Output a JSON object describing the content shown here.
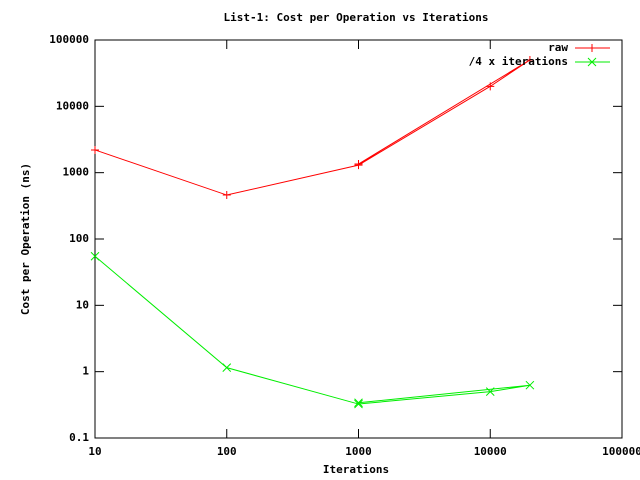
{
  "chart_data": {
    "type": "line",
    "title": "List-1: Cost per Operation vs Iterations",
    "x_label": "Iterations",
    "y_label": "Cost per Operation (ns)",
    "x": [
      10,
      100,
      1000,
      10000,
      20000,
      1000
    ],
    "series": [
      {
        "name": "raw",
        "color": "#ff0000",
        "marker": "+",
        "values": [
          2200,
          460,
          1300,
          20000,
          50000,
          1350
        ]
      },
      {
        "name": "/4 x iterations",
        "color": "#00ee00",
        "marker": "x",
        "values": [
          55,
          1.15,
          0.325,
          0.5,
          0.625,
          0.34
        ]
      }
    ],
    "xlim": [
      10,
      100000
    ],
    "ylim": [
      0.1,
      100000
    ],
    "xlog": true,
    "ylog": true,
    "xticks": [
      10,
      100,
      1000,
      10000,
      100000
    ],
    "yticks": [
      0.1,
      1,
      10,
      100,
      1000,
      10000,
      100000
    ],
    "grid": false,
    "legend": "top-right"
  }
}
